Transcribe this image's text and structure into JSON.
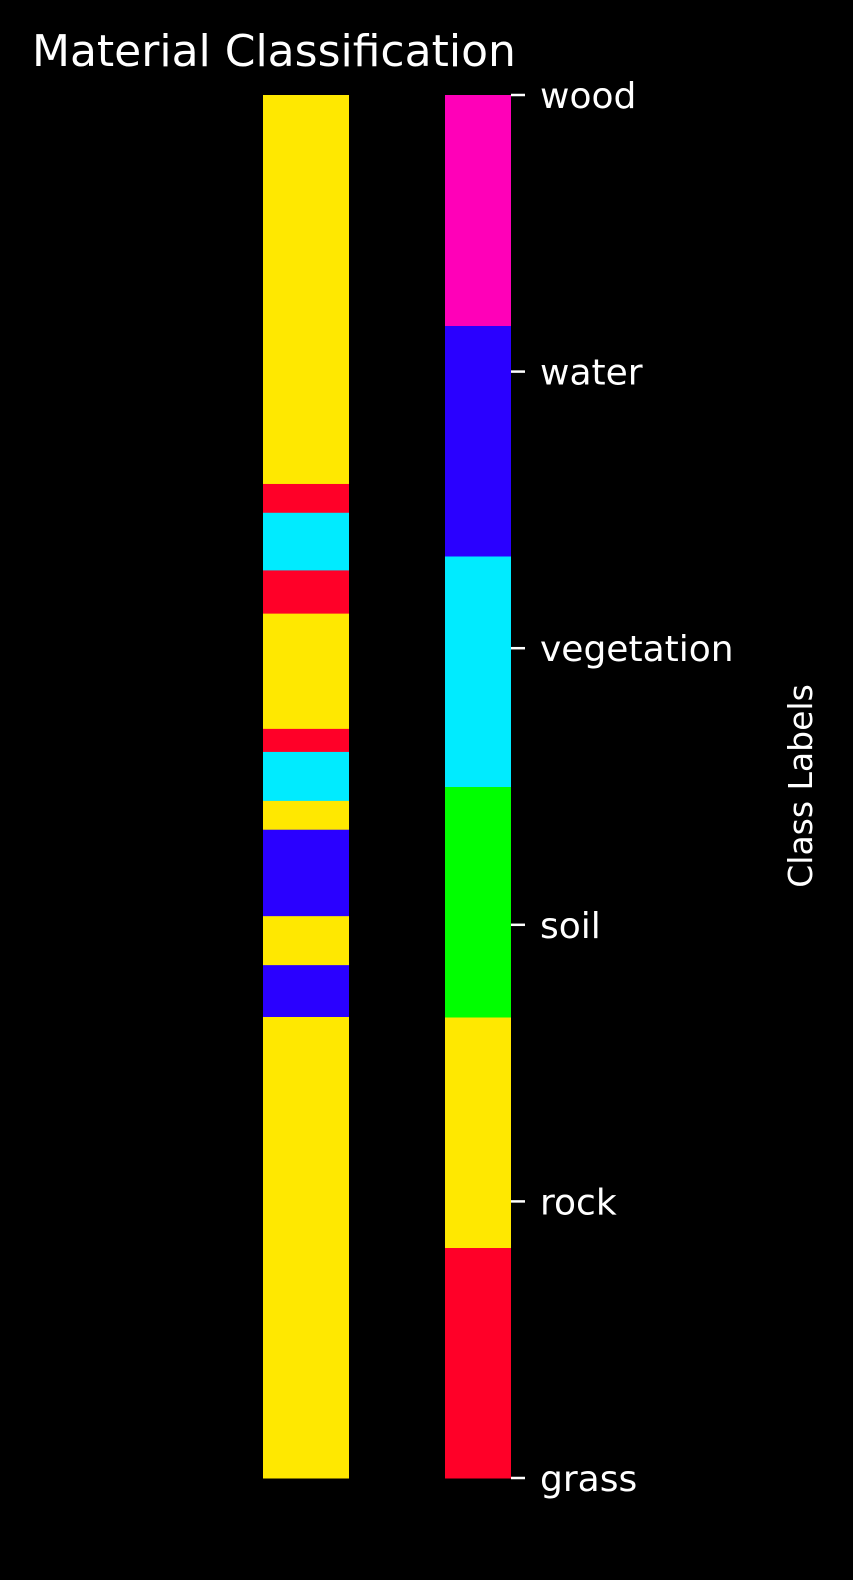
{
  "chart_data": {
    "type": "heatmap",
    "title": "Material Classification",
    "colorbar": {
      "label": "Class Labels",
      "ticks": [
        "grass",
        "rock",
        "soil",
        "vegetation",
        "water",
        "wood"
      ],
      "colors": [
        "#ff0028",
        "#ffe800",
        "#00ff00",
        "#00ebff",
        "#2a00ff",
        "#ff00b8"
      ]
    },
    "image_shape": [
      480,
      30
    ],
    "class_segments": [
      {
        "start": 0,
        "end": 135,
        "class": "rock"
      },
      {
        "start": 135,
        "end": 145,
        "class": "grass"
      },
      {
        "start": 145,
        "end": 165,
        "class": "vegetation"
      },
      {
        "start": 165,
        "end": 180,
        "class": "grass"
      },
      {
        "start": 180,
        "end": 220,
        "class": "rock"
      },
      {
        "start": 220,
        "end": 228,
        "class": "grass"
      },
      {
        "start": 228,
        "end": 245,
        "class": "vegetation"
      },
      {
        "start": 245,
        "end": 255,
        "class": "rock"
      },
      {
        "start": 255,
        "end": 285,
        "class": "water"
      },
      {
        "start": 285,
        "end": 302,
        "class": "rock"
      },
      {
        "start": 302,
        "end": 320,
        "class": "water"
      },
      {
        "start": 320,
        "end": 480,
        "class": "rock"
      }
    ]
  }
}
